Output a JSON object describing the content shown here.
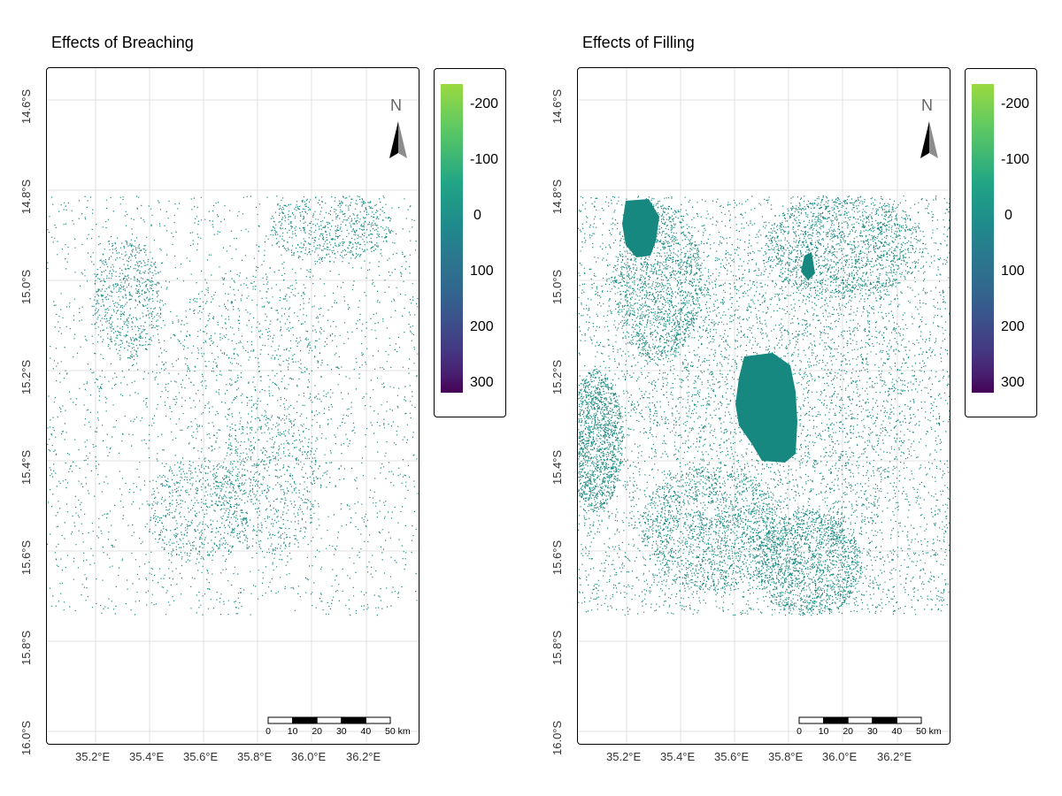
{
  "panels": [
    {
      "title": "Effects of Breaching",
      "y_ticks": [
        "14.6°S",
        "14.8°S",
        "15.0°S",
        "15.2°S",
        "15.4°S",
        "15.6°S",
        "15.8°S",
        "16.0°S"
      ],
      "x_ticks": [
        "35.2°E",
        "35.4°E",
        "35.6°E",
        "35.8°E",
        "36.0°E",
        "36.2°E"
      ],
      "north_label": "N",
      "scale_labels": [
        "0",
        "10",
        "20",
        "30",
        "40",
        "50 km"
      ],
      "legend_labels": [
        "-200",
        "-100",
        "0",
        "100",
        "200",
        "300"
      ]
    },
    {
      "title": "Effects of Filling",
      "y_ticks": [
        "14.6°S",
        "14.8°S",
        "15.0°S",
        "15.2°S",
        "15.4°S",
        "15.6°S",
        "15.8°S",
        "16.0°S"
      ],
      "x_ticks": [
        "35.2°E",
        "35.4°E",
        "35.6°E",
        "35.8°E",
        "36.0°E",
        "36.2°E"
      ],
      "north_label": "N",
      "scale_labels": [
        "0",
        "10",
        "20",
        "30",
        "40",
        "50 km"
      ],
      "legend_labels": [
        "-200",
        "-100",
        "0",
        "100",
        "200",
        "300"
      ]
    }
  ],
  "colors": {
    "data_pixels": "#16887f",
    "grid": "#d9d9d9",
    "colorbar_top": "#9ad93f",
    "colorbar_mid": "#21a585",
    "colorbar_bottom": "#440154"
  }
}
